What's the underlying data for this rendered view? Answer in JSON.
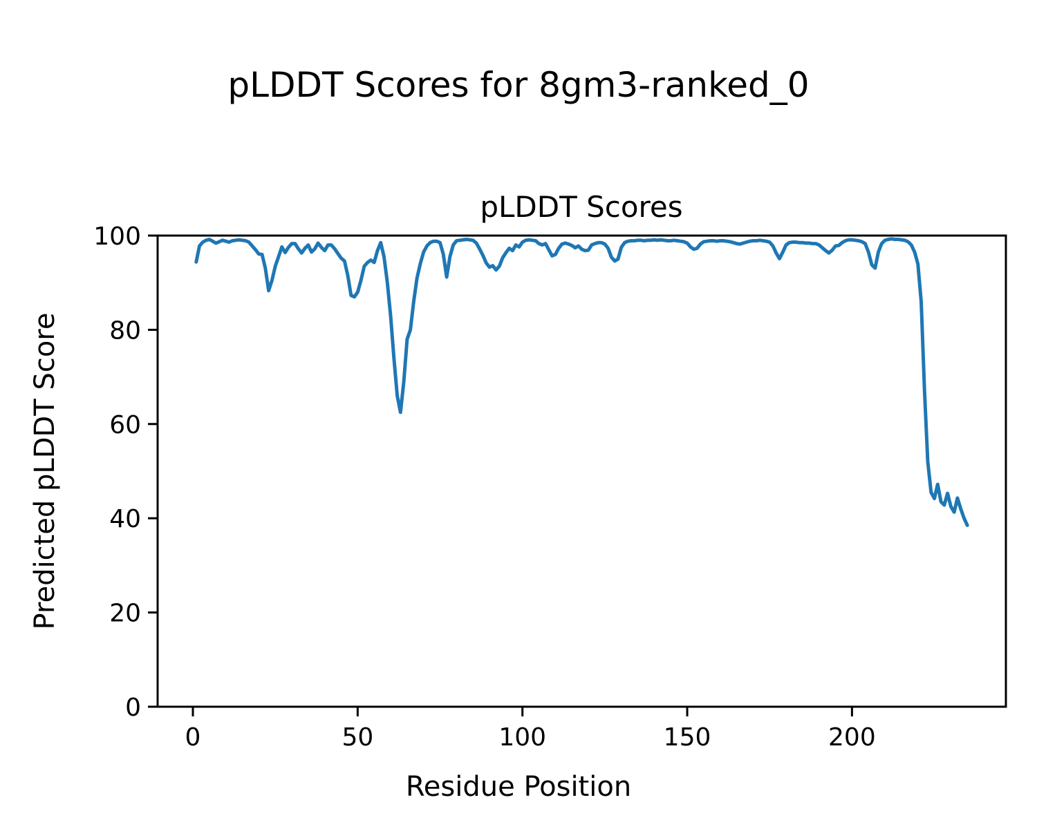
{
  "figure": {
    "suptitle": "pLDDT Scores for 8gm3-ranked_0",
    "axes_title": "pLDDT Scores",
    "xlabel": "Residue Position",
    "ylabel": "Predicted pLDDT Score"
  },
  "chart_data": {
    "type": "line",
    "title": "pLDDT Scores",
    "suptitle": "pLDDT Scores for 8gm3-ranked_0",
    "xlabel": "Residue Position",
    "ylabel": "Predicted pLDDT Score",
    "xlim": [
      -10.7,
      246.7
    ],
    "ylim": [
      0,
      100
    ],
    "xticks": [
      0,
      50,
      100,
      150,
      200
    ],
    "yticks": [
      0,
      20,
      40,
      60,
      80,
      100
    ],
    "grid": false,
    "legend": null,
    "line_color": "#1f77b4",
    "line_width": 5,
    "series": [
      {
        "name": "pLDDT",
        "x_start": 1,
        "x_step": 1,
        "n_points": 235,
        "y": [
          94.4,
          97.8,
          98.6,
          99.0,
          99.2,
          98.8,
          98.4,
          98.7,
          99.0,
          98.8,
          98.6,
          98.9,
          99.0,
          99.1,
          99.0,
          98.9,
          98.6,
          97.8,
          97.0,
          96.1,
          96.0,
          93.0,
          88.3,
          90.5,
          93.5,
          95.5,
          97.6,
          96.4,
          97.5,
          98.3,
          98.3,
          97.2,
          96.3,
          97.3,
          98.0,
          96.5,
          97.2,
          98.4,
          97.5,
          96.8,
          98.0,
          98.0,
          97.2,
          96.2,
          95.2,
          94.6,
          91.5,
          87.3,
          87.0,
          88.0,
          90.5,
          93.5,
          94.3,
          94.8,
          94.3,
          96.8,
          98.5,
          95.5,
          90.0,
          83.0,
          74.0,
          66.0,
          62.5,
          69.0,
          78.0,
          80.0,
          86.0,
          91.0,
          94.0,
          96.5,
          97.8,
          98.5,
          98.8,
          98.8,
          98.5,
          96.0,
          91.2,
          95.5,
          98.0,
          98.9,
          99.0,
          99.1,
          99.2,
          99.1,
          99.0,
          98.4,
          97.2,
          95.8,
          94.2,
          93.3,
          93.6,
          92.7,
          93.5,
          95.3,
          96.4,
          97.3,
          96.8,
          98.0,
          97.6,
          98.6,
          99.0,
          99.1,
          99.0,
          98.9,
          98.3,
          98.0,
          98.3,
          97.0,
          95.7,
          96.0,
          97.3,
          98.2,
          98.4,
          98.2,
          97.9,
          97.4,
          97.8,
          97.1,
          96.8,
          96.9,
          98.0,
          98.3,
          98.5,
          98.5,
          98.2,
          97.3,
          95.4,
          94.6,
          95.0,
          97.5,
          98.5,
          98.8,
          98.9,
          98.9,
          99.0,
          99.0,
          98.9,
          99.0,
          99.0,
          99.1,
          99.0,
          99.1,
          99.0,
          98.9,
          98.9,
          99.0,
          98.9,
          98.8,
          98.7,
          98.4,
          97.6,
          97.1,
          97.3,
          98.2,
          98.7,
          98.8,
          98.9,
          98.9,
          98.8,
          98.9,
          98.9,
          98.8,
          98.7,
          98.5,
          98.3,
          98.2,
          98.4,
          98.6,
          98.8,
          98.9,
          98.9,
          99.0,
          98.9,
          98.8,
          98.6,
          97.8,
          96.3,
          95.1,
          96.5,
          98.0,
          98.5,
          98.6,
          98.6,
          98.5,
          98.5,
          98.4,
          98.4,
          98.3,
          98.3,
          98.0,
          97.4,
          96.8,
          96.3,
          96.9,
          97.8,
          97.9,
          98.5,
          98.9,
          99.1,
          99.1,
          99.0,
          98.9,
          98.7,
          98.3,
          96.5,
          93.8,
          93.1,
          96.5,
          98.3,
          99.0,
          99.2,
          99.3,
          99.2,
          99.2,
          99.1,
          99.0,
          98.7,
          98.0,
          96.5,
          94.0,
          86.0,
          67.0,
          52.0,
          45.5,
          44.2,
          47.2,
          43.5,
          42.8,
          45.3,
          42.5,
          41.3,
          44.3,
          42.0,
          40.0,
          38.5
        ]
      }
    ]
  }
}
